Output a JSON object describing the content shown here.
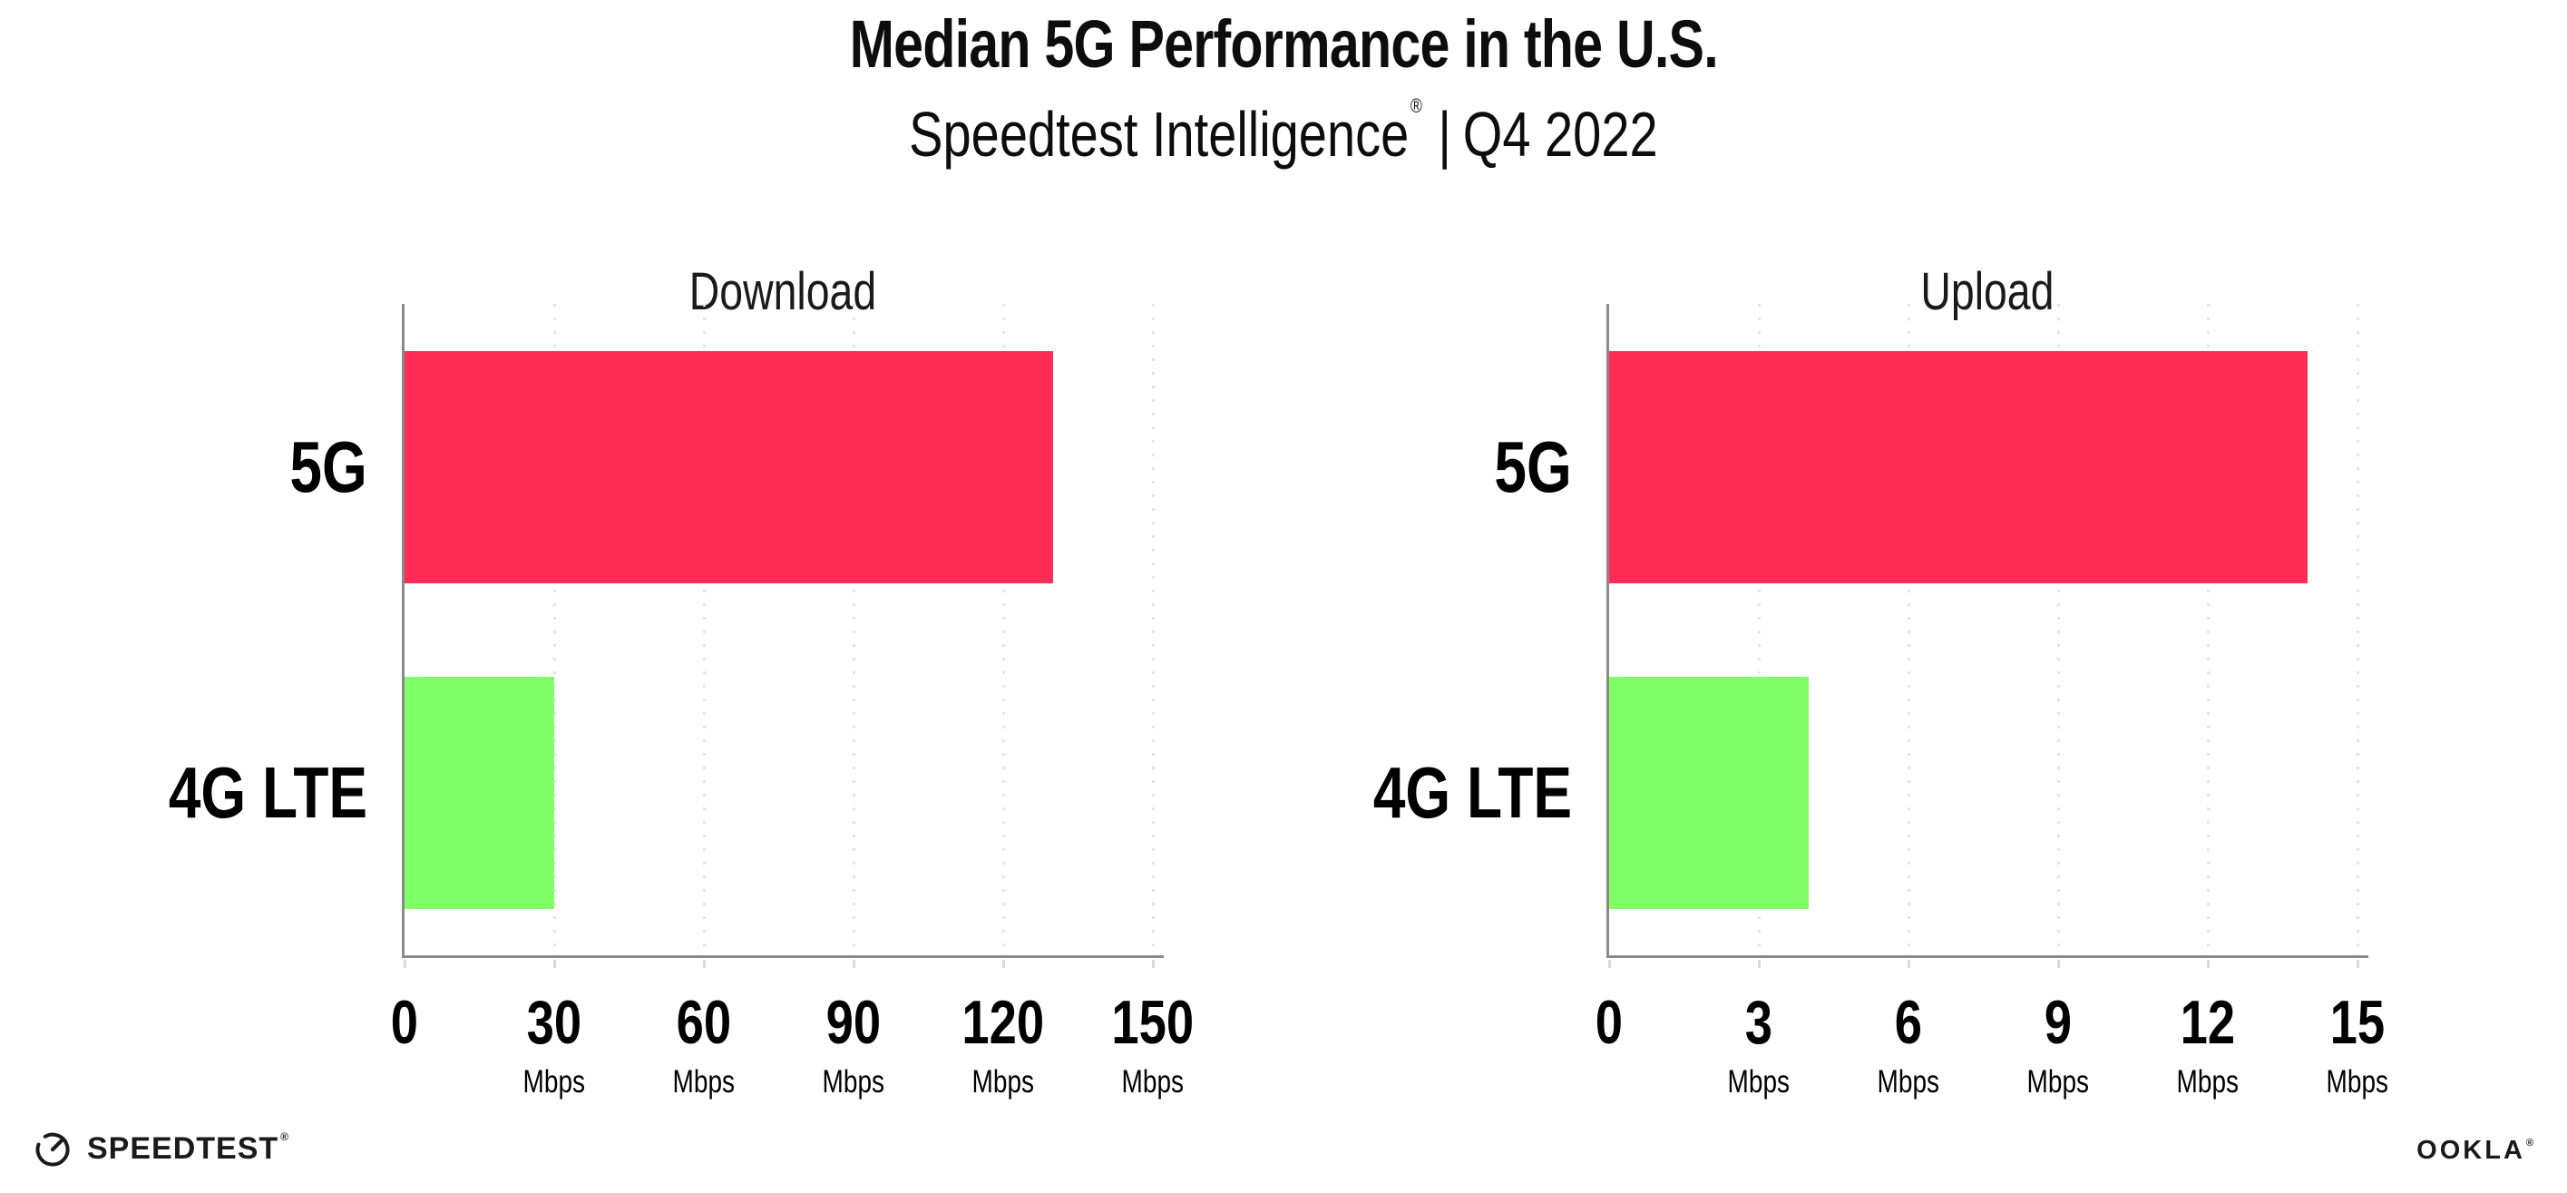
{
  "header": {
    "title": "Median 5G Performance in the U.S.",
    "subtitle_product": "Speedtest Intelligence",
    "subtitle_mark": "®",
    "subtitle_divider": "|",
    "subtitle_period": "Q4 2022"
  },
  "chart_data": [
    {
      "type": "bar",
      "orientation": "horizontal",
      "title": "Download",
      "categories": [
        "5G",
        "4G LTE"
      ],
      "values": [
        130,
        30
      ],
      "unit": "Mbps",
      "xlabel": "",
      "xlim": [
        0,
        150
      ],
      "xticks": [
        0,
        30,
        60,
        90,
        120,
        150
      ],
      "bar_colors": [
        "#ff2d55",
        "#80ff66"
      ],
      "grid": "dotted-vertical-at-ticks",
      "legend": "none"
    },
    {
      "type": "bar",
      "orientation": "horizontal",
      "title": "Upload",
      "categories": [
        "5G",
        "4G LTE"
      ],
      "values": [
        14,
        4
      ],
      "unit": "Mbps",
      "xlabel": "",
      "xlim": [
        0,
        15
      ],
      "xticks": [
        0,
        3,
        6,
        9,
        12,
        15
      ],
      "bar_colors": [
        "#ff2d55",
        "#80ff66"
      ],
      "grid": "dotted-vertical-at-ticks",
      "legend": "none"
    }
  ],
  "footer": {
    "speedtest_label": "SPEEDTEST",
    "speedtest_mark": "®",
    "ookla_label": "OOKLA",
    "ookla_mark": "®"
  },
  "style": {
    "bar_pink": "#ff2d55",
    "bar_green": "#80ff66",
    "axis_color": "#8a8a8a",
    "grid_dot_color": "#e3e3ee",
    "text_color": "#111111",
    "background": "#ffffff"
  }
}
